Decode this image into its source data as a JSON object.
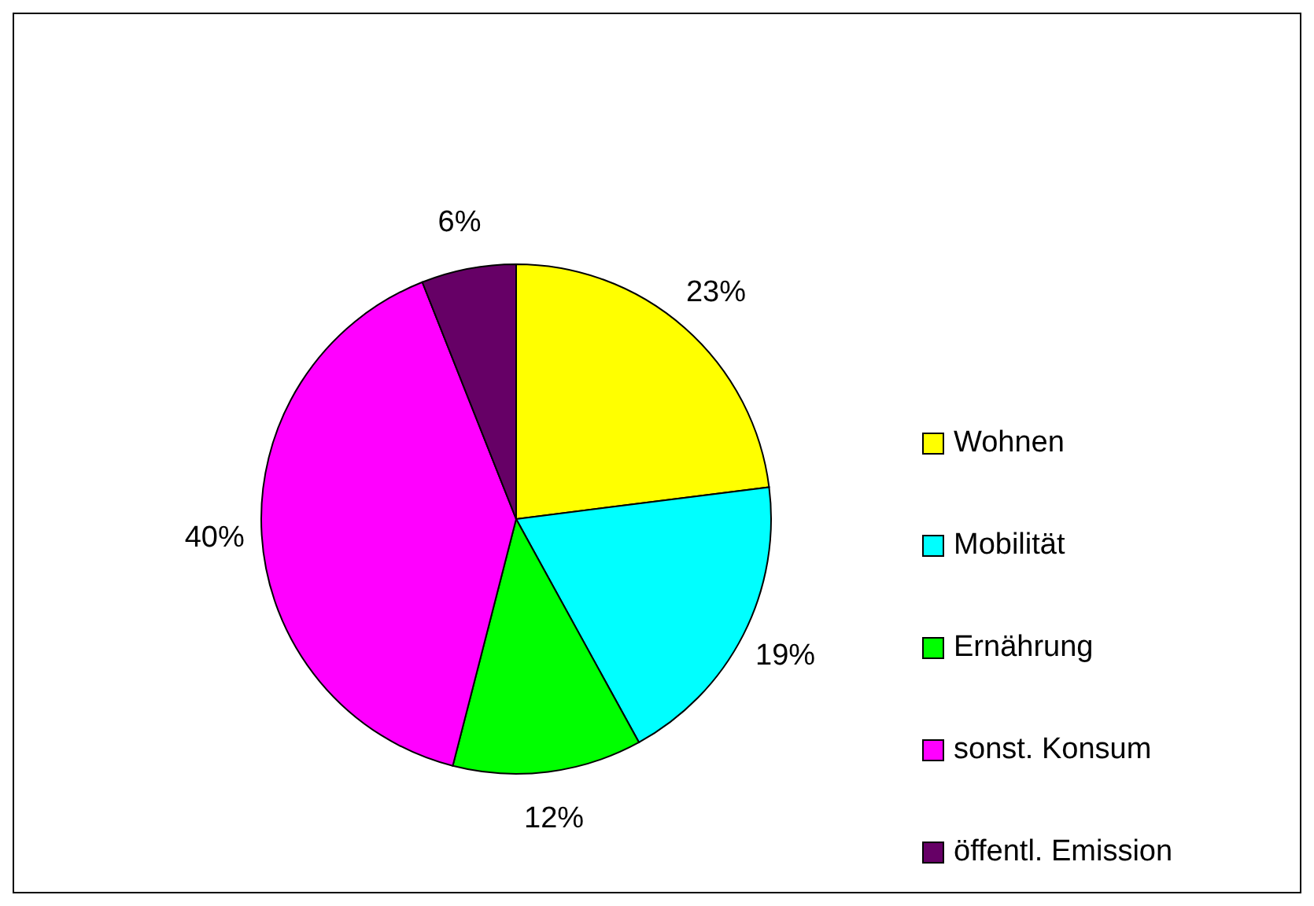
{
  "chart_data": {
    "type": "pie",
    "categories": [
      "Wohnen",
      "Mobilität",
      "Ernährung",
      "sonst. Konsum",
      "öffentl. Emission"
    ],
    "values": [
      23,
      19,
      12,
      40,
      6
    ],
    "colors": [
      "#ffff00",
      "#00ffff",
      "#00ff00",
      "#ff00ff",
      "#660066"
    ],
    "value_labels": [
      "23%",
      "19%",
      "12%",
      "40%",
      "6%"
    ],
    "legend": "right"
  }
}
